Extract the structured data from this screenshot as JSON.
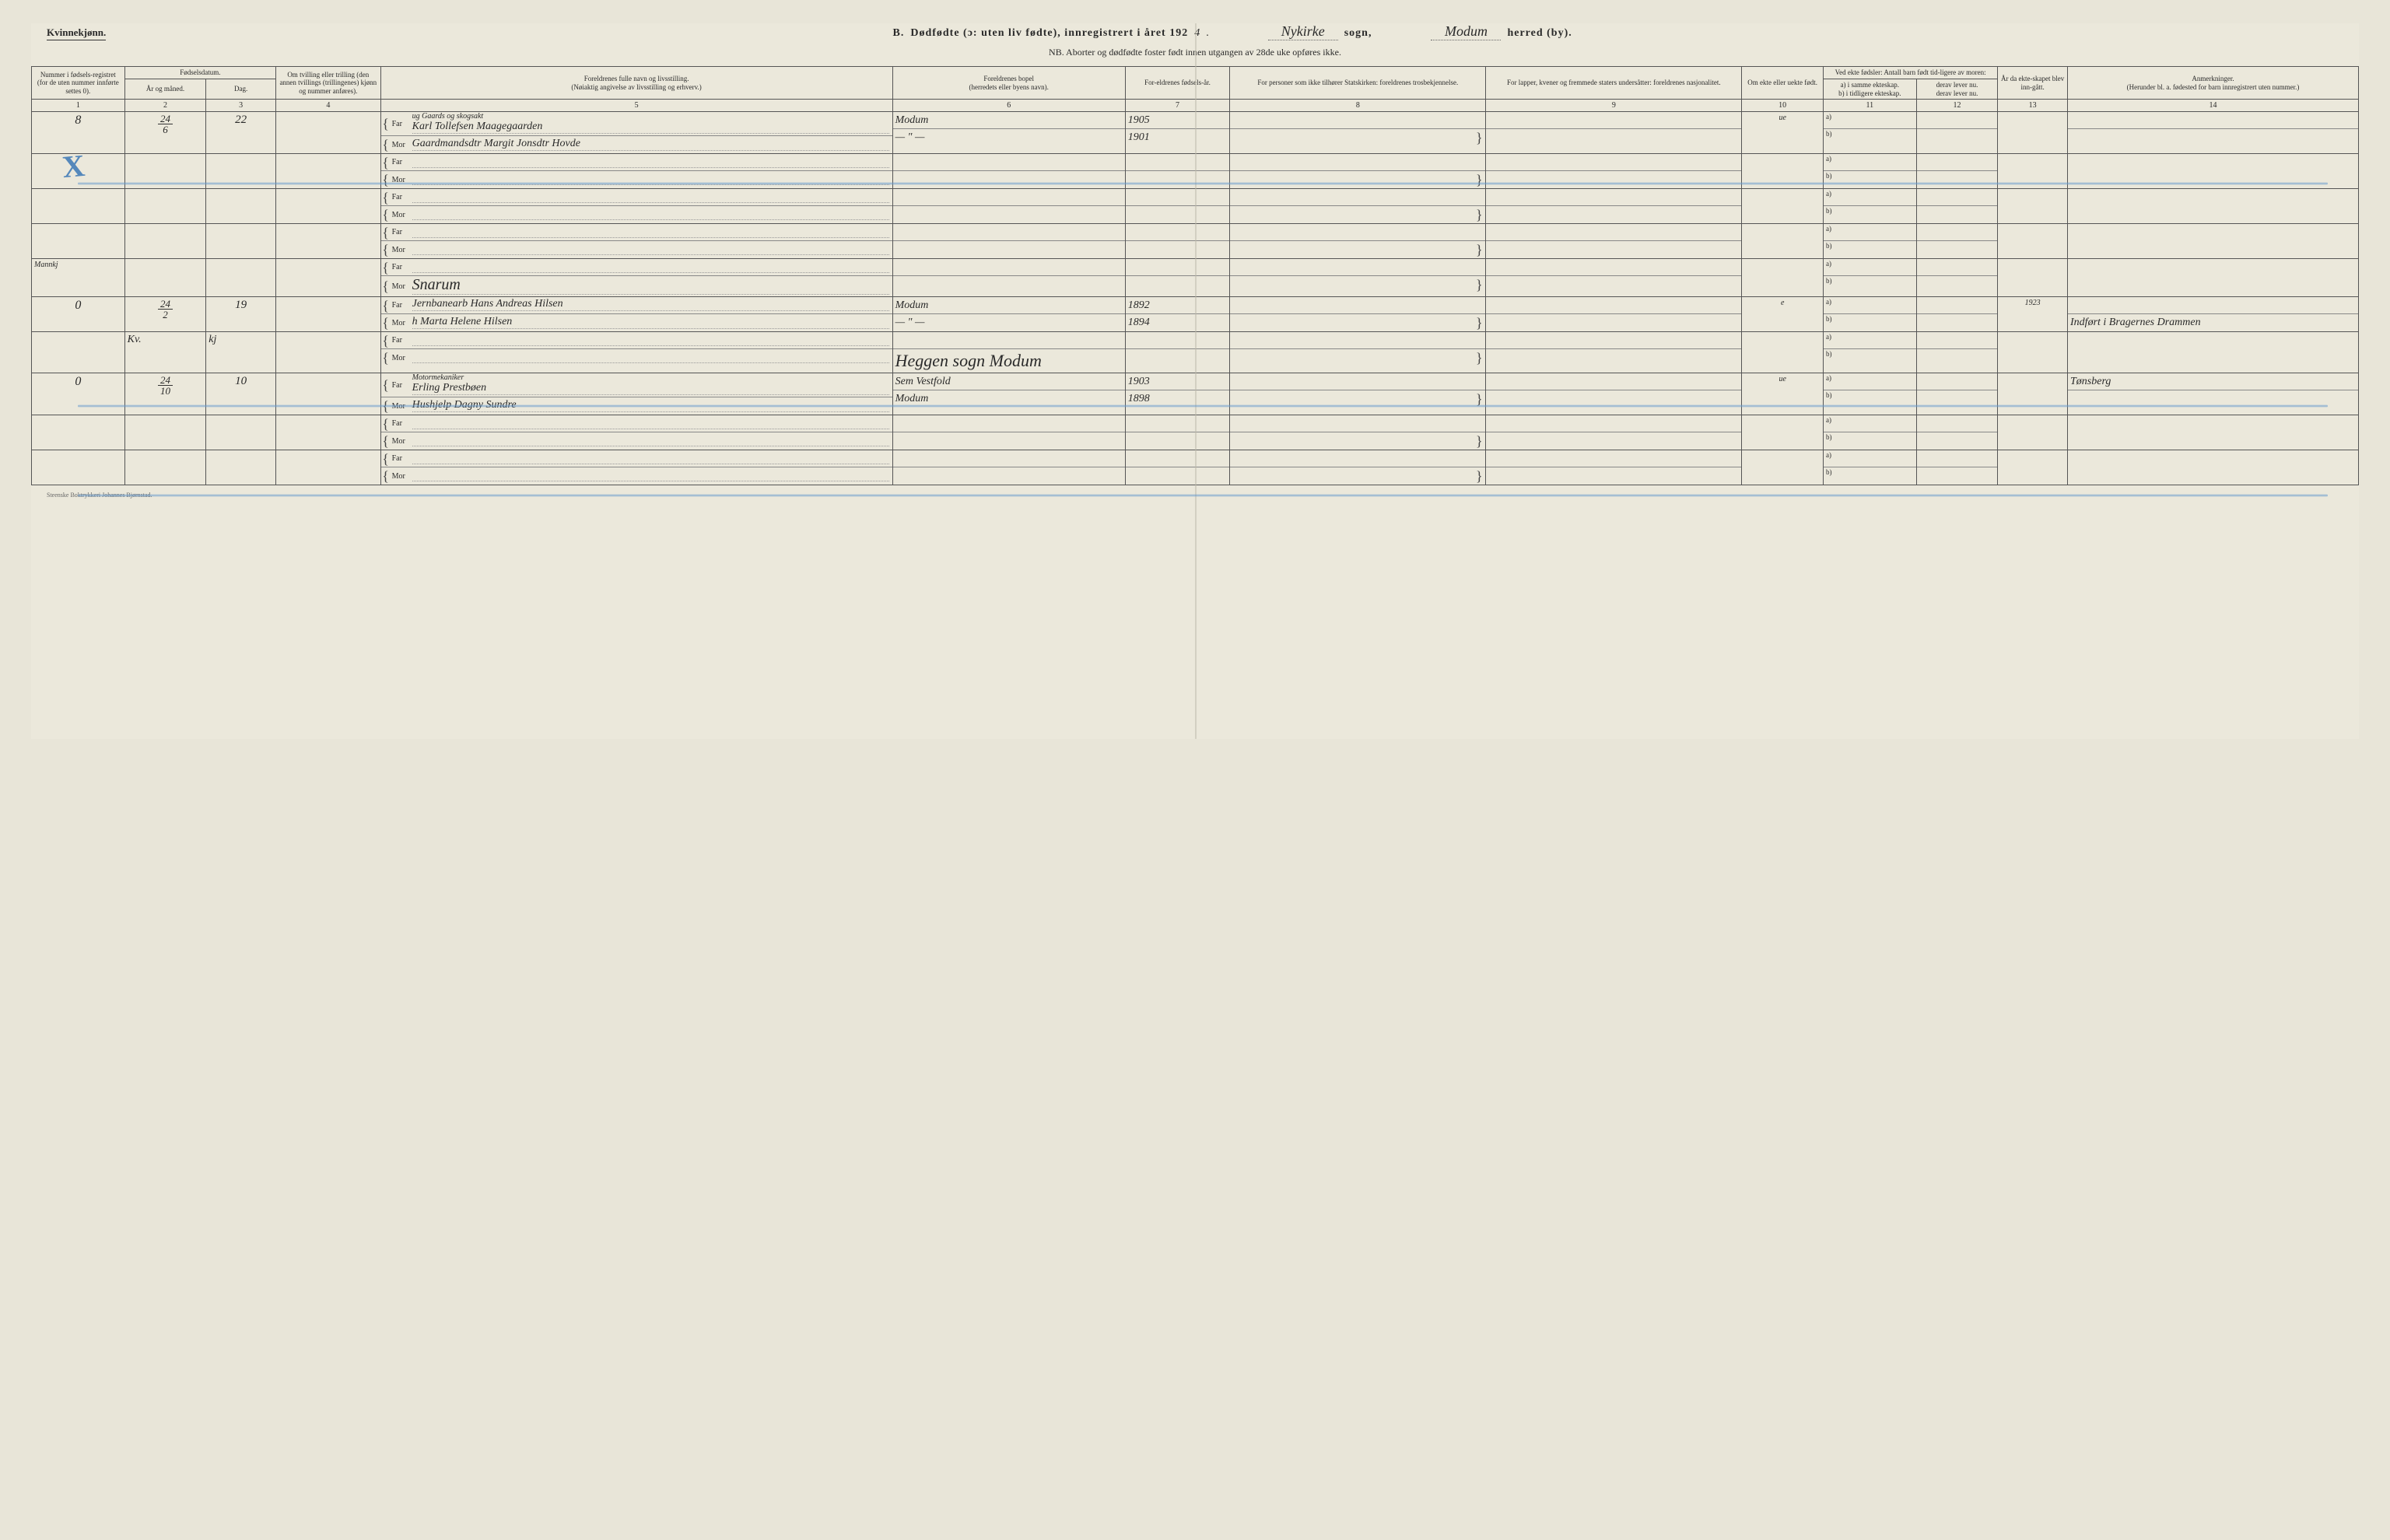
{
  "header": {
    "gender": "Kvinnekjønn.",
    "title_prefix": "B.",
    "title_main": "Dødfødte (ɔ: uten liv fødte), innregistrert i året 192",
    "year_suffix": "4",
    "sogn_value": "Nykirke",
    "sogn_label": "sogn,",
    "herred_value": "Modum",
    "herred_label": "herred (by).",
    "subtitle": "NB. Aborter og dødfødte foster født innen utgangen av 28de uke opføres ikke."
  },
  "columns": {
    "c1": "Nummer i fødsels-registret (for de uten nummer innførte settes 0).",
    "c2_top": "Fødselsdatum.",
    "c2a": "År og måned.",
    "c2b": "Dag.",
    "c4": "Om tvilling eller trilling (den annen tvillings (trillingenes) kjønn og nummer anføres).",
    "c5_top": "Foreldrenes fulle navn og livsstilling.",
    "c5_sub": "(Nøiaktig angivelse av livsstilling og erhverv.)",
    "c6_top": "Foreldrenes bopel",
    "c6_sub": "(herredets eller byens navn).",
    "c7": "For-eldrenes fødsels-år.",
    "c8": "For personer som ikke tilhører Statskirken: foreldrenes trosbekjennelse.",
    "c9": "For lapper, kvener og fremmede staters undersåtter: foreldrenes nasjonalitet.",
    "c10": "Om ekte eller uekte født.",
    "c11_top": "Ved ekte fødsler: Antall barn født tid-ligere av moren:",
    "c11a": "a) i samme ekteskap.",
    "c11b": "b) i tidligere ekteskap.",
    "c12a": "derav lever nu.",
    "c12b": "derav lever nu.",
    "c13": "År da ekte-skapet blev inn-gått.",
    "c14_top": "Anmerkninger.",
    "c14_sub": "(Herunder bl. a. fødested for barn innregistrert uten nummer.)",
    "far": "Far",
    "mor": "Mor"
  },
  "colnums": [
    "1",
    "2",
    "3",
    "4",
    "5",
    "6",
    "7",
    "8",
    "9",
    "10",
    "11",
    "12",
    "13",
    "14"
  ],
  "rows": [
    {
      "num": "8",
      "date_top": "24",
      "date_bot": "6",
      "day": "22",
      "twin": "",
      "far_occ": "ug Gaards og skogsakt",
      "far": "Karl Tollefsen Maagegaarden",
      "mor": "Gaardmandsdtr Margit Jonsdtr Hovde",
      "bopel_far": "Modum",
      "bopel_mor": "— \" —",
      "year_far": "1905",
      "year_mor": "1901",
      "ekte": "ue",
      "anm": ""
    },
    {
      "empty": true
    },
    {
      "empty": true
    },
    {
      "empty": true
    },
    {
      "num": "",
      "section_label": "Mannkj",
      "far": "",
      "mor": "",
      "bopel_mor_big": "Snarum",
      "empty_struct": true
    },
    {
      "num": "0",
      "date_top": "24",
      "date_bot": "2",
      "day": "19",
      "twin": "",
      "far": "Jernbanearb Hans Andreas Hilsen",
      "mor": "h Marta Helene Hilsen",
      "bopel_far": "Modum",
      "bopel_mor": "— \" —",
      "year_far": "1892",
      "year_mor": "1894",
      "ekte": "e",
      "c13": "1923",
      "anm": "Indført i Bragernes Drammen"
    },
    {
      "num": "",
      "date_label": "Kv.",
      "day": "kj",
      "far": "",
      "mor": "",
      "bopel_big": "Heggen sogn Modum",
      "empty_struct": true
    },
    {
      "num": "0",
      "date_top": "24",
      "date_bot": "10",
      "day": "10",
      "twin": "",
      "far_occ": "Motormekaniker",
      "far": "Erling Prestbøen",
      "mor": "Hushjelp Dagny Sundre",
      "bopel_far": "Sem Vestfold",
      "bopel_mor": "Modum",
      "year_far": "1903",
      "year_mor": "1898",
      "ekte": "ue",
      "anm": "Tønsberg"
    },
    {
      "empty": true
    },
    {
      "empty": true
    }
  ],
  "printer": "Steenske Boktrykkeri Johannes Bjørnstad.",
  "style": {
    "page_bg": "#ebe8db",
    "border_color": "#555555",
    "handwriting_color": "#2a2a2a",
    "blue_pencil": "#6699cc",
    "col_widths_pct": [
      4,
      3.5,
      3,
      4.5,
      22,
      10,
      4.5,
      11,
      11,
      3.5,
      4,
      3.5,
      3,
      12.5
    ]
  }
}
